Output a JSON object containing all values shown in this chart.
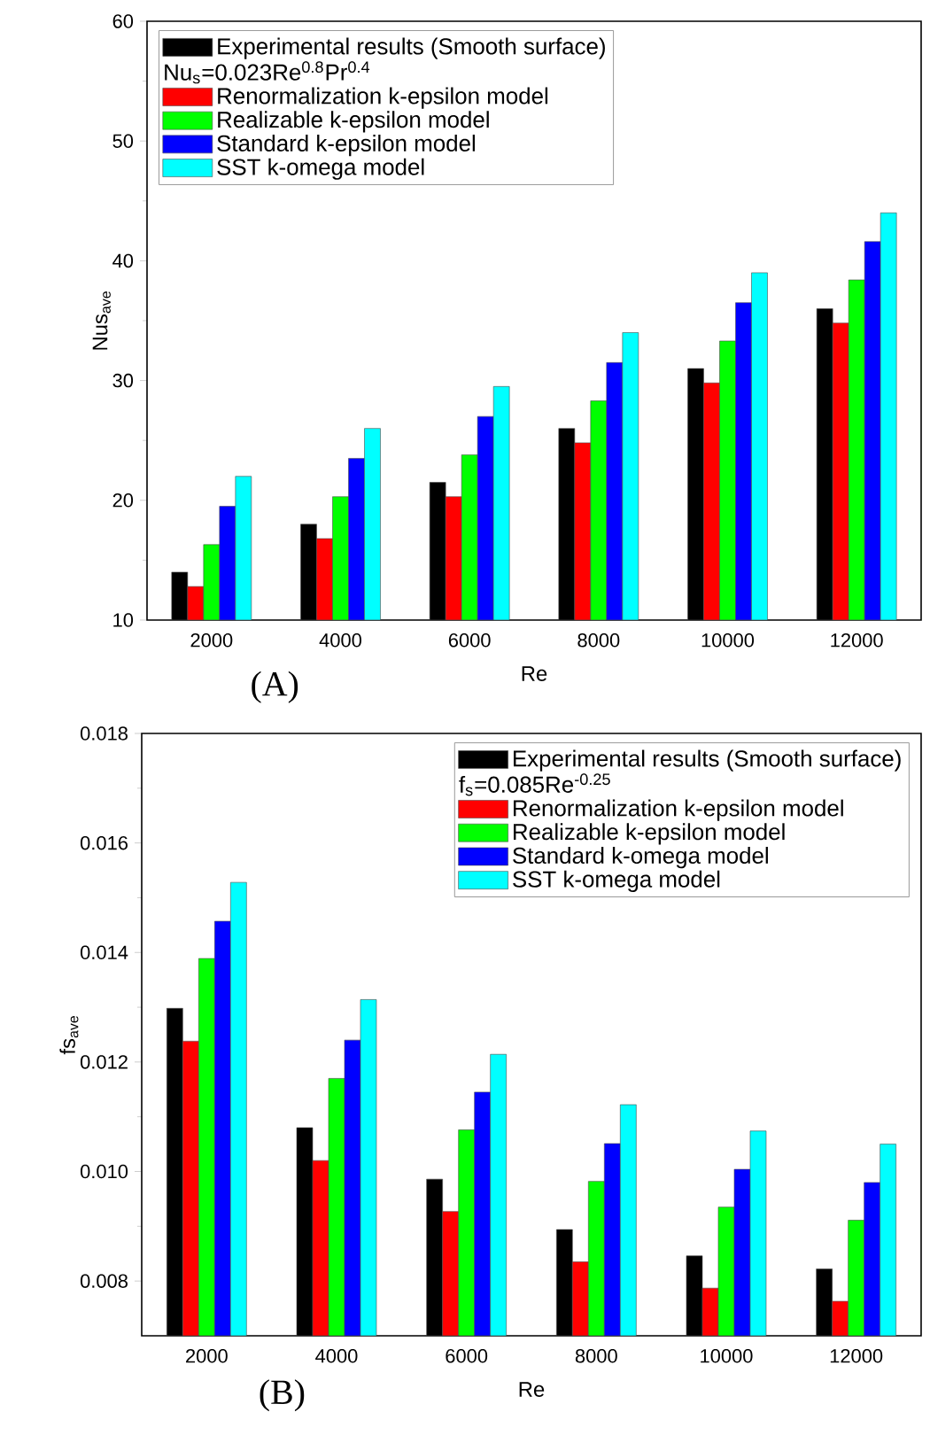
{
  "chart_data": [
    {
      "type": "bar",
      "xlabel": "Re",
      "ylabel": "Nus$_{ave}$",
      "categories": [
        "2000",
        "4000",
        "6000",
        "8000",
        "10000",
        "12000"
      ],
      "ylim": [
        10,
        60
      ],
      "yticks": [
        10,
        20,
        30,
        40,
        50,
        60
      ],
      "legend": "top left",
      "annotations": [
        "Nu$_{s}$=0.023Re$^{0.8}$Pr$^{0.4}$",
        "(A)"
      ],
      "series": [
        {
          "name": "Experimental results (Smooth surface)",
          "color": "#000000",
          "values": [
            14.0,
            18.0,
            21.5,
            26.0,
            31.0,
            36.0
          ]
        },
        {
          "name": "Renormalization k-epsilon model",
          "color": "#ff0000",
          "values": [
            12.8,
            16.8,
            20.3,
            24.8,
            29.8,
            34.8
          ]
        },
        {
          "name": "Realizable k-epsilon model",
          "color": "#00ff00",
          "values": [
            16.3,
            20.3,
            23.8,
            28.3,
            33.3,
            38.4
          ]
        },
        {
          "name": "Standard k-epsilon model",
          "color": "#0000ff",
          "values": [
            19.5,
            23.5,
            27.0,
            31.5,
            36.5,
            41.6
          ]
        },
        {
          "name": "SST k-omega model",
          "color": "#00ffff",
          "values": [
            22.0,
            26.0,
            29.5,
            34.0,
            39.0,
            44.0
          ]
        }
      ]
    },
    {
      "type": "bar",
      "xlabel": "Re",
      "ylabel": "fs$_{ave}$",
      "categories": [
        "2000",
        "4000",
        "6000",
        "8000",
        "10000",
        "12000"
      ],
      "ylim": [
        0.007,
        0.018
      ],
      "yticks": [
        0.008,
        {
          "value": 0.01,
          "label": "0.010"
        },
        0.012,
        0.014,
        0.016,
        0.018
      ],
      "legend": "top right",
      "annotations": [
        "f$_{s}$=0.085Re$^{-0.25}$",
        "(B)"
      ],
      "series": [
        {
          "name": "Experimental results (Smooth surface)",
          "color": "#000000",
          "values": [
            0.01298,
            0.0108,
            0.00986,
            0.00894,
            0.00846,
            0.00822
          ]
        },
        {
          "name": "Renormalization k-epsilon model",
          "color": "#ff0000",
          "values": [
            0.01238,
            0.0102,
            0.00927,
            0.00835,
            0.00787,
            0.00763
          ]
        },
        {
          "name": "Realizable k-epsilon model",
          "color": "#00ff00",
          "values": [
            0.01389,
            0.0117,
            0.01076,
            0.00982,
            0.00935,
            0.00911
          ]
        },
        {
          "name": "Standard k-omega model",
          "color": "#0000ff",
          "values": [
            0.01457,
            0.0124,
            0.01145,
            0.01051,
            0.01004,
            0.0098
          ]
        },
        {
          "name": "SST k-omega model",
          "color": "#00ffff",
          "values": [
            0.01528,
            0.01314,
            0.01214,
            0.01122,
            0.01074,
            0.0105
          ]
        }
      ]
    }
  ]
}
